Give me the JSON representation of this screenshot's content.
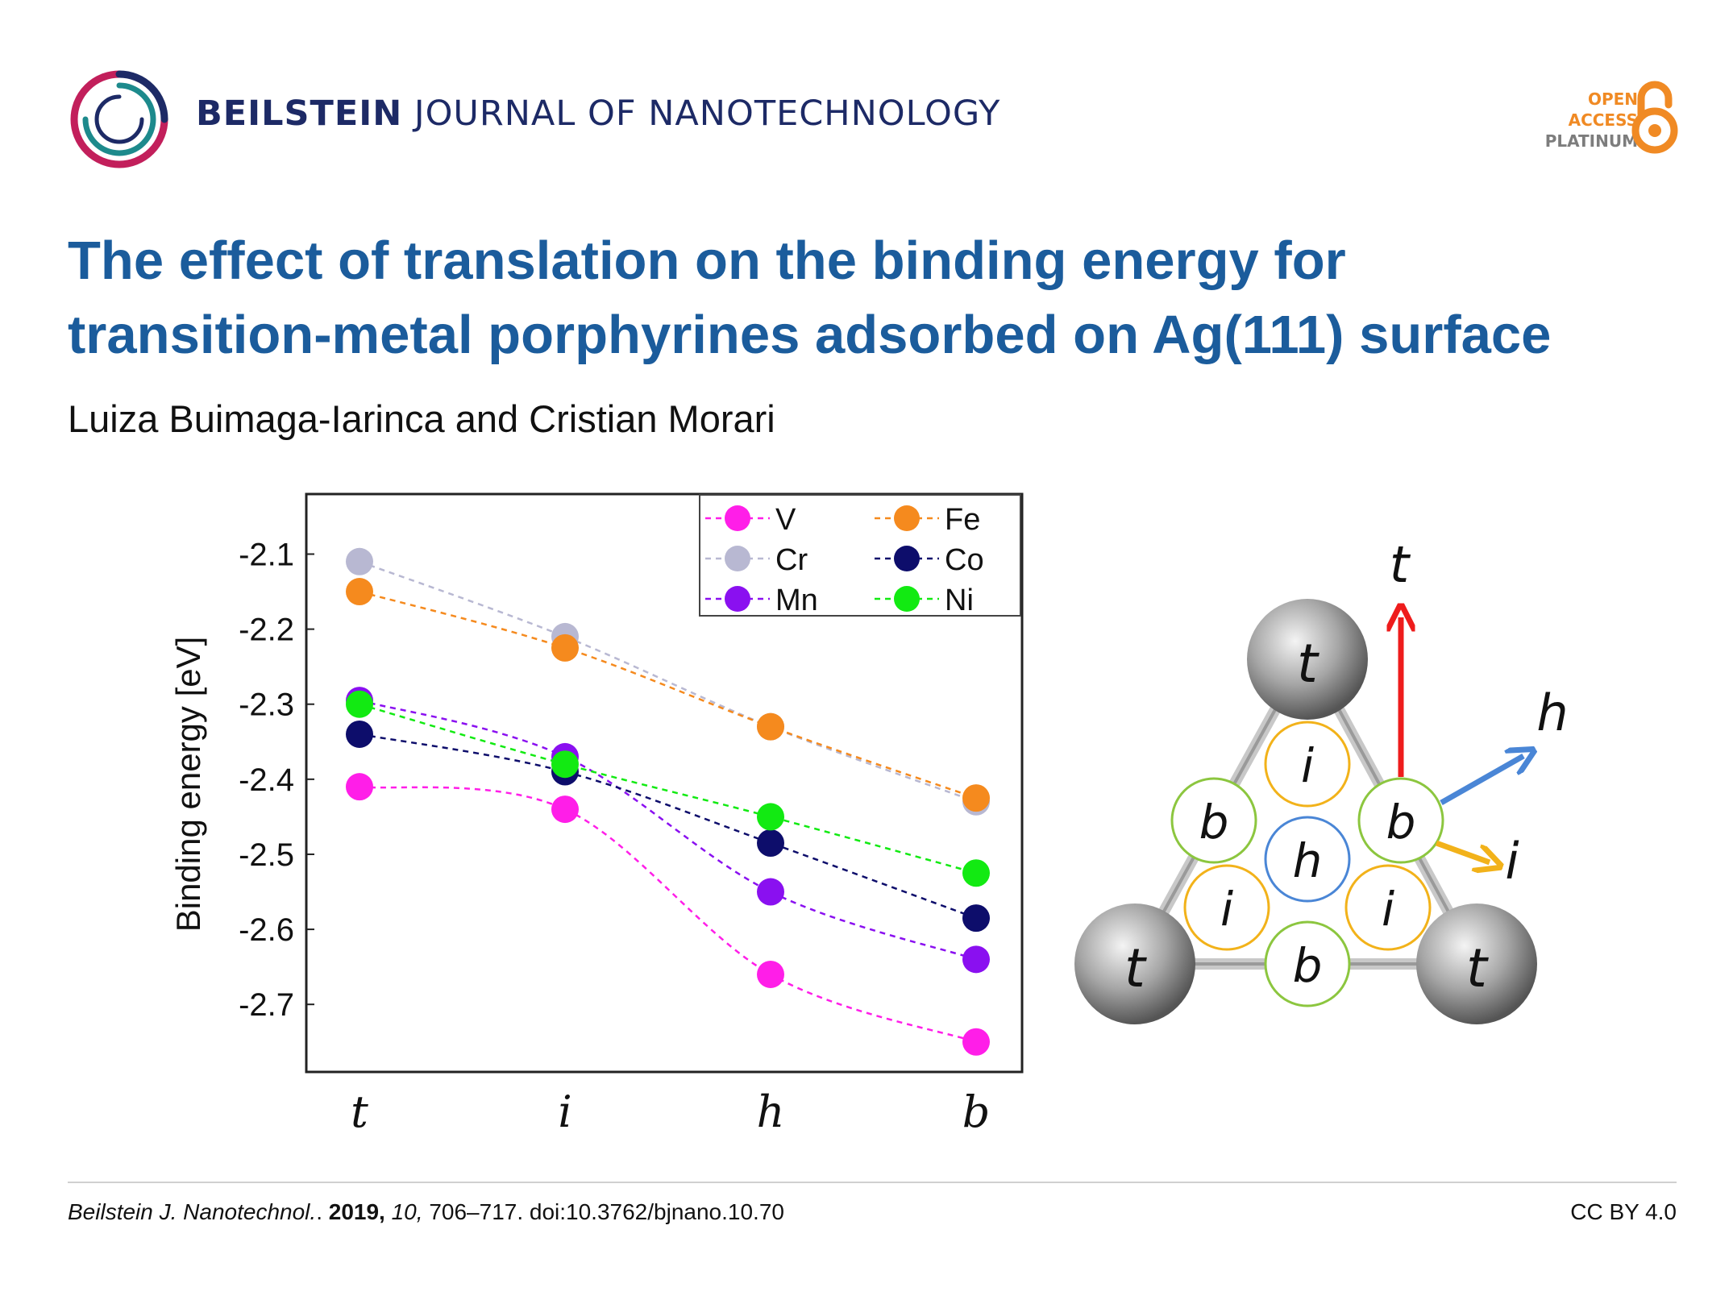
{
  "header": {
    "journal_bold": "BEILSTEIN",
    "journal_rest": "JOURNAL OF NANOTECHNOLOGY",
    "oa_line1": "OPEN",
    "oa_line2": "ACCESS",
    "oa_line3": "PLATINUM",
    "logo_icon": "beilstein-ring-logo",
    "oa_icon": "open-access-lock-icon",
    "colors": {
      "journal": "#1d2a66",
      "title": "#1b5c9c",
      "oa_orange": "#f08a24"
    }
  },
  "article": {
    "title_line1": "The effect of translation on the binding energy for",
    "title_line2": "transition-metal porphyrines adsorbed on Ag(111) surface",
    "authors": "Luiza Buimaga-Iarinca and Cristian Morari"
  },
  "chart_data": {
    "type": "line",
    "categories": [
      "t",
      "i",
      "h",
      "b"
    ],
    "ylabel": "Binding energy [eV]",
    "yticks": [
      "-2.1",
      "-2.2",
      "-2.3",
      "-2.4",
      "-2.5",
      "-2.6",
      "-2.7"
    ],
    "ylim": [
      -2.79,
      -2.02
    ],
    "legend": "top-right",
    "series": [
      {
        "name": "V",
        "color": "#ff1ee8",
        "values": [
          -2.41,
          -2.44,
          -2.66,
          -2.75
        ]
      },
      {
        "name": "Cr",
        "color": "#b8b8d2",
        "values": [
          -2.11,
          -2.21,
          -2.33,
          -2.43
        ]
      },
      {
        "name": "Mn",
        "color": "#8a10f0",
        "values": [
          -2.295,
          -2.37,
          -2.55,
          -2.64
        ]
      },
      {
        "name": "Fe",
        "color": "#f58a1e",
        "values": [
          -2.15,
          -2.225,
          -2.33,
          -2.425
        ]
      },
      {
        "name": "Co",
        "color": "#0d0d6b",
        "values": [
          -2.34,
          -2.39,
          -2.485,
          -2.585
        ]
      },
      {
        "name": "Ni",
        "color": "#12ea12",
        "values": [
          -2.3,
          -2.38,
          -2.45,
          -2.525
        ]
      }
    ],
    "legend_order": [
      [
        "V",
        "Fe"
      ],
      [
        "Cr",
        "Co"
      ],
      [
        "Mn",
        "Ni"
      ]
    ]
  },
  "schematic": {
    "sites": {
      "top": "t",
      "intermediate": "i",
      "hollow": "h",
      "bridge": "b"
    },
    "arrows": [
      {
        "label": "t",
        "color": "#ee1c1c"
      },
      {
        "label": "h",
        "color": "#4a86d6"
      },
      {
        "label": "i",
        "color": "#f2b21a"
      }
    ]
  },
  "footer": {
    "journal_abbr": "Beilstein J. Nanotechnol.",
    "year": "2019,",
    "volume": "10,",
    "pages_doi": " 706–717. doi:10.3762/bjnano.10.70",
    "license": "CC BY 4.0"
  }
}
